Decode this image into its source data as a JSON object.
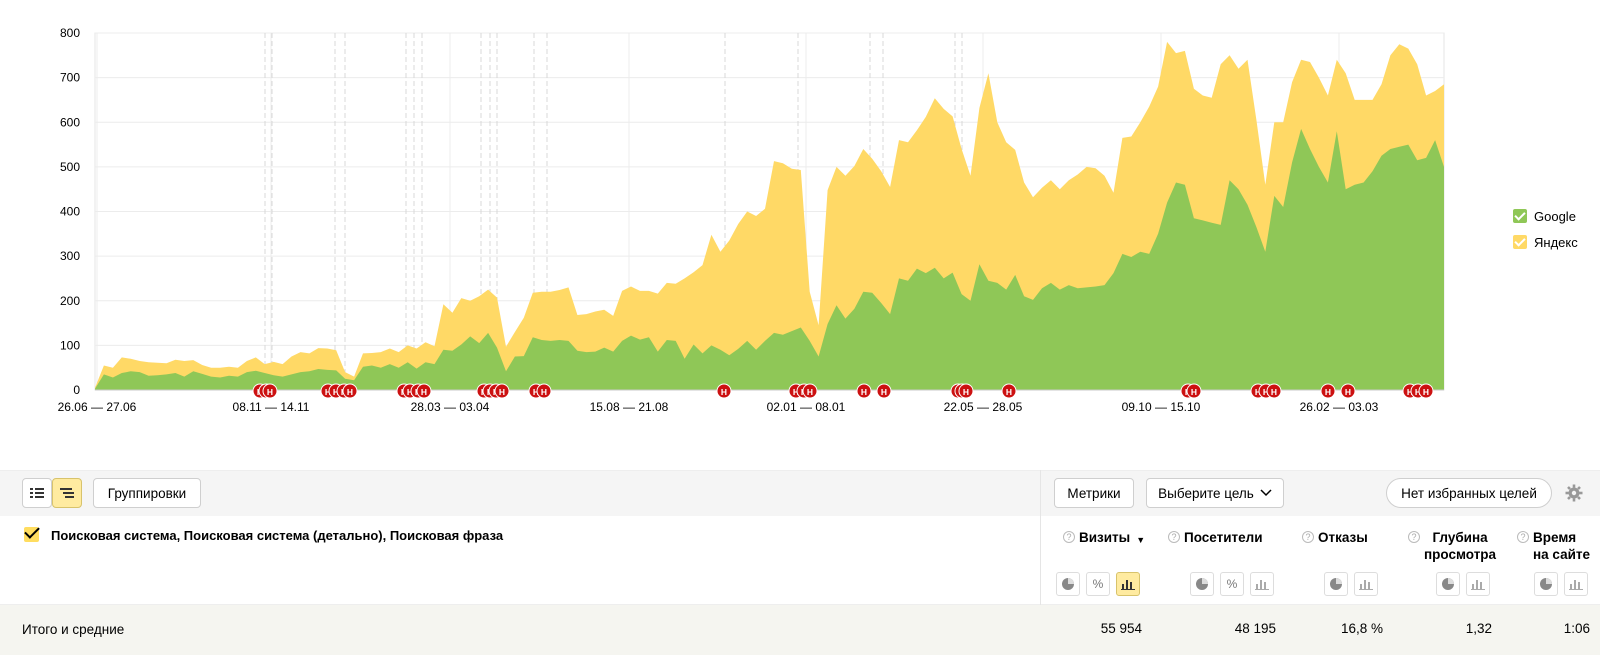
{
  "chart_data": {
    "type": "area",
    "stacked": true,
    "y_ticks": [
      "0",
      "100",
      "200",
      "300",
      "400",
      "500",
      "600",
      "700",
      "800"
    ],
    "ylim": [
      0,
      800
    ],
    "x_tick_labels": [
      "26.06 — 27.06",
      "08.11 — 14.11",
      "28.03 — 03.04",
      "15.08 — 21.08",
      "02.01 — 08.01",
      "22.05 — 28.05",
      "09.10 — 15.10",
      "26.02 — 03.03"
    ],
    "series": [
      {
        "name": "Google",
        "color": "#8fc757",
        "values": [
          3,
          35,
          28,
          38,
          42,
          40,
          32,
          33,
          35,
          38,
          30,
          42,
          36,
          30,
          28,
          32,
          30,
          40,
          43,
          38,
          33,
          30,
          35,
          40,
          42,
          47,
          45,
          44,
          25,
          22,
          52,
          55,
          50,
          58,
          50,
          62,
          48,
          62,
          58,
          90,
          88,
          102,
          120,
          105,
          128,
          95,
          42,
          75,
          76,
          118,
          112,
          110,
          112,
          110,
          88,
          85,
          86,
          95,
          86,
          110,
          122,
          113,
          118,
          86,
          112,
          110,
          70,
          102,
          82,
          100,
          90,
          78,
          92,
          110,
          90,
          110,
          128,
          124,
          132,
          140,
          110,
          75,
          148,
          190,
          160,
          182,
          220,
          218,
          195,
          170,
          250,
          245,
          272,
          262,
          274,
          250,
          263,
          215,
          200,
          282,
          245,
          240,
          225,
          258,
          210,
          202,
          228,
          240,
          225,
          235,
          228,
          230,
          232,
          235,
          262,
          305,
          298,
          310,
          305,
          350,
          420,
          465,
          460,
          385,
          380,
          375,
          370,
          470,
          450,
          415,
          365,
          310,
          435,
          410,
          510,
          585,
          540,
          500,
          465,
          580,
          450,
          460,
          465,
          490,
          525,
          540,
          545,
          550,
          515,
          520,
          560,
          500
        ],
        "display": [
          3,
          35,
          28,
          38,
          42,
          40,
          32,
          33,
          35,
          38,
          30,
          42,
          36,
          30,
          28,
          32,
          30,
          40,
          43,
          38,
          33,
          30,
          35,
          40,
          42,
          47,
          45,
          44,
          25,
          22,
          52,
          55,
          50,
          58,
          50,
          62,
          48,
          62,
          58,
          90,
          88,
          102,
          120,
          105,
          128,
          95,
          42,
          75,
          76,
          118,
          112,
          110,
          112,
          110,
          88,
          85,
          86,
          95,
          86,
          110,
          122,
          113,
          118,
          86,
          112,
          110,
          70,
          102,
          82,
          100,
          90,
          78,
          92,
          110,
          90,
          110,
          128,
          124,
          132,
          140,
          110,
          75,
          148,
          190,
          160,
          182,
          220,
          218,
          195,
          170,
          250,
          245,
          272,
          262,
          274,
          250,
          263,
          215,
          200,
          282,
          245,
          240,
          225,
          258,
          210,
          202,
          228,
          240,
          225,
          235,
          228,
          230,
          232,
          235,
          262,
          305,
          298,
          310,
          305,
          350,
          420,
          465,
          460,
          385,
          380,
          375,
          370,
          470,
          450,
          415,
          365,
          310,
          435,
          410,
          510,
          585,
          540,
          500,
          465,
          580,
          450,
          460,
          465,
          490,
          525,
          540,
          545,
          550,
          515,
          520,
          560,
          500
        ]
      },
      {
        "name": "Яндекс",
        "color": "#ffd966",
        "values": [
          2,
          20,
          22,
          35,
          28,
          25,
          30,
          28,
          25,
          30,
          35,
          25,
          20,
          20,
          22,
          20,
          20,
          25,
          30,
          20,
          30,
          28,
          40,
          45,
          40,
          47,
          48,
          45,
          15,
          8,
          30,
          28,
          35,
          35,
          35,
          38,
          45,
          45,
          40,
          102,
          85,
          104,
          80,
          105,
          97,
          112,
          55,
          55,
          86,
          100,
          108,
          110,
          112,
          120,
          80,
          85,
          90,
          85,
          80,
          112,
          110,
          109,
          104,
          130,
          128,
          128,
          180,
          162,
          198,
          248,
          220,
          257,
          280,
          290,
          300,
          296,
          385,
          384,
          364,
          353,
          110,
          70,
          300,
          310,
          320,
          320,
          320,
          300,
          295,
          285,
          310,
          310,
          310,
          350,
          380,
          380,
          350,
          325,
          280,
          350,
          465,
          360,
          330,
          280,
          255,
          230,
          225,
          230,
          225,
          235,
          255,
          270,
          265,
          245,
          180,
          260,
          270,
          290,
          330,
          330,
          360,
          290,
          300,
          290,
          280,
          280,
          360,
          280,
          270,
          325,
          240,
          150,
          165,
          190,
          180,
          155,
          195,
          200,
          195,
          160,
          260,
          190,
          185,
          160,
          160,
          210,
          230,
          215,
          215,
          140,
          110,
          185
        ]
      }
    ],
    "legend": [
      "Google",
      "Яндекс"
    ],
    "legend_placement": "right",
    "annotation_letter": "Н"
  },
  "toolbar": {
    "groupings_label": "Группировки",
    "metrics_label": "Метрики",
    "goal_select_label": "Выберите цель",
    "favorite_goals_label": "Нет избранных целей"
  },
  "table": {
    "dimensions_title": "Поисковая система, Поисковая система (детально), Поисковая фраза",
    "columns": [
      {
        "label_1": "Визиты",
        "label_2": "",
        "sorted": true
      },
      {
        "label_1": "Посетители",
        "label_2": ""
      },
      {
        "label_1": "Отказы",
        "label_2": ""
      },
      {
        "label_1": "Глубина",
        "label_2": "просмотра"
      },
      {
        "label_1": "Время",
        "label_2": "на сайте"
      }
    ],
    "totals_label": "Итого и средние",
    "totals": [
      "55 954",
      "48 195",
      "16,8 %",
      "1,32",
      "1:06"
    ]
  }
}
